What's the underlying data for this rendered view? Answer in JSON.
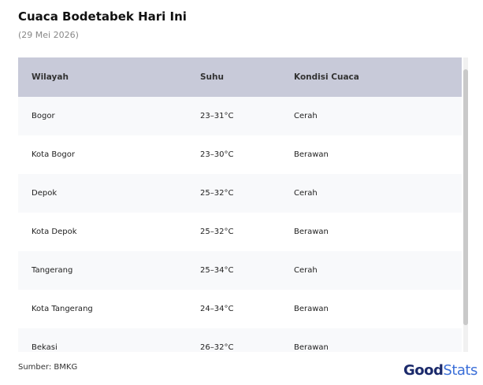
{
  "header": {
    "title": "Cuaca Bodetabek Hari Ini",
    "subtitle": "(29 Mei 2026)"
  },
  "table": {
    "columns": [
      "Wilayah",
      "Suhu",
      "Kondisi Cuaca"
    ],
    "rows": [
      [
        "Bogor",
        "23–31°C",
        "Cerah"
      ],
      [
        "Kota Bogor",
        "23–30°C",
        "Berawan"
      ],
      [
        "Depok",
        "25–32°C",
        "Cerah"
      ],
      [
        "Kota Depok",
        "25–32°C",
        "Berawan"
      ],
      [
        "Tangerang",
        "25–34°C",
        "Cerah"
      ],
      [
        "Kota Tangerang",
        "24–34°C",
        "Berawan"
      ],
      [
        "Bekasi",
        "26–32°C",
        "Berawan"
      ]
    ]
  },
  "footer": {
    "source": "Sumber: BMKG",
    "logo": {
      "part1": "Good",
      "part2": "Stats"
    }
  }
}
